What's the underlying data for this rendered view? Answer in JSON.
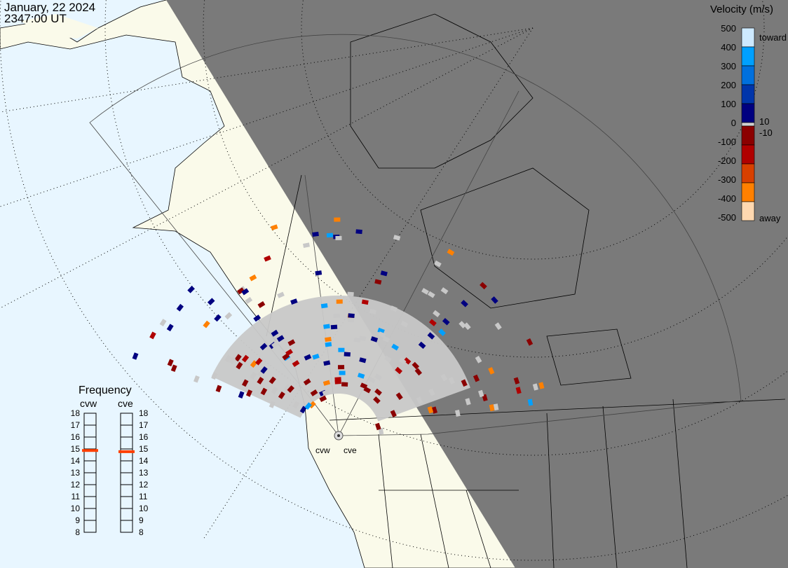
{
  "title": {
    "date": "January, 22 2024",
    "time": "2347:00 UT"
  },
  "velocity_scale": {
    "title": "Velocity (m/s)",
    "ticks": [
      "500",
      "400",
      "300",
      "200",
      "100",
      "0",
      "-100",
      "-200",
      "-300",
      "-400",
      "-500"
    ],
    "labels": {
      "toward": "toward",
      "away": "away",
      "pos_threshold": "10",
      "neg_threshold": "-10"
    },
    "colors": [
      "#cde9ff",
      "#00a0ff",
      "#0070dd",
      "#0035aa",
      "#000080",
      "#d0d0d0",
      "#8b0000",
      "#b00000",
      "#d84000",
      "#ff8000",
      "#ffd8b0"
    ]
  },
  "frequency": {
    "title": "Frequency",
    "ticks": [
      "18",
      "17",
      "16",
      "15",
      "14",
      "13",
      "12",
      "11",
      "10",
      "9",
      "8"
    ],
    "radars": [
      {
        "name": "cvw",
        "value_mhz": 14.9
      },
      {
        "name": "cve",
        "value_mhz": 14.8
      }
    ],
    "marker_color": "#ff4000"
  },
  "sites": [
    "cvw",
    "cve"
  ],
  "colors": {
    "ocean": "#e8f6ff",
    "land": "#fafaea",
    "night": "#7a7a7a",
    "ground_scatter": "#c8c8c8"
  }
}
